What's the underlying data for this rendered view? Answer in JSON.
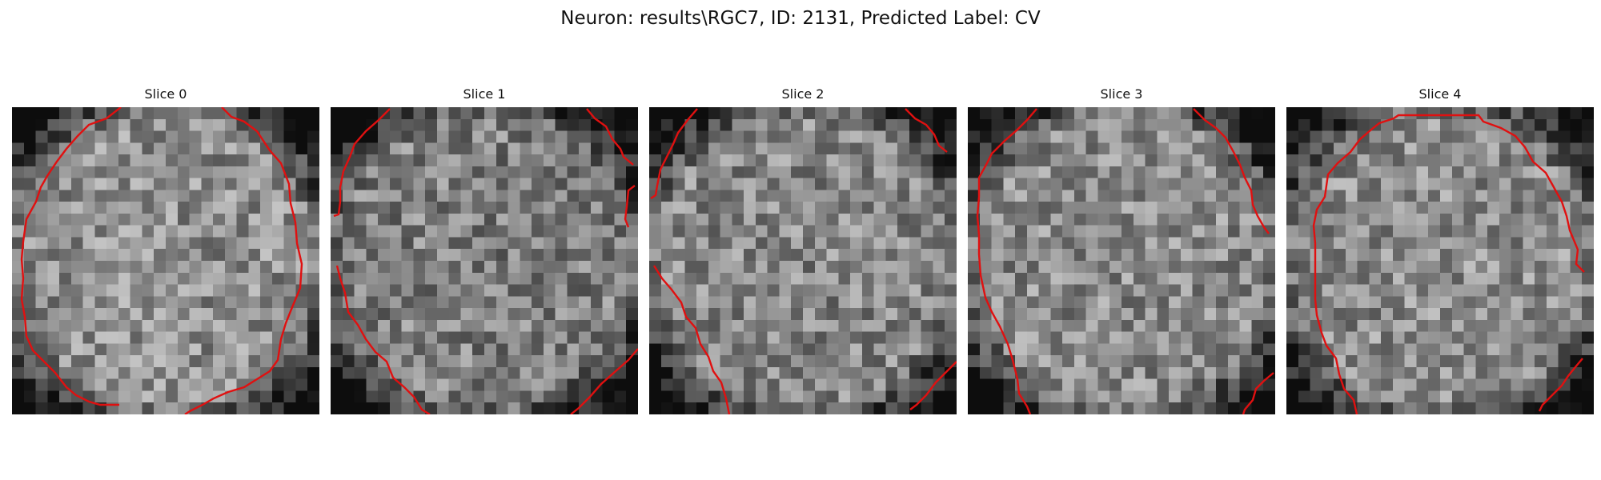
{
  "figure": {
    "title": "Neuron: results\\RGC7, ID: 2131, Predicted Label: CV",
    "contour_color": "#e01010",
    "grid_size": 26
  },
  "slices": [
    {
      "title": "Slice 0",
      "seed": 11,
      "brightness": 0.56
    },
    {
      "title": "Slice 1",
      "seed": 23,
      "brightness": 0.5
    },
    {
      "title": "Slice 2",
      "seed": 37,
      "brightness": 0.53
    },
    {
      "title": "Slice 3",
      "seed": 41,
      "brightness": 0.54
    },
    {
      "title": "Slice 4",
      "seed": 59,
      "brightness": 0.55
    }
  ]
}
